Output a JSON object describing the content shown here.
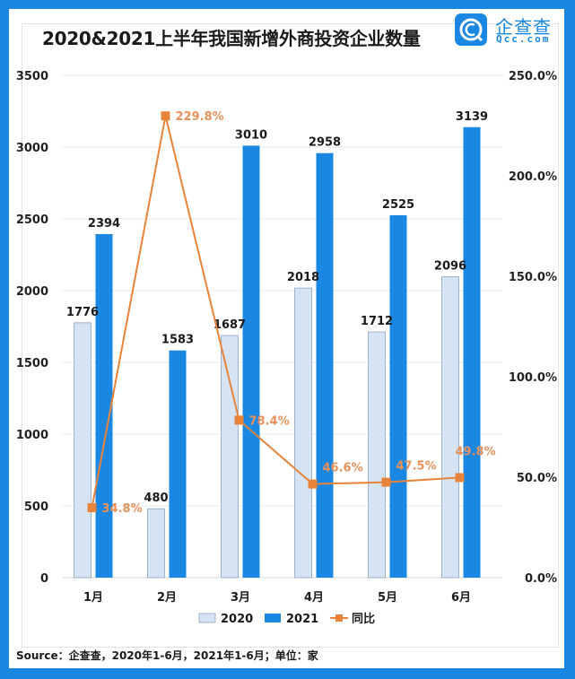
{
  "title": "2020&2021上半年我国新增外商投资企业数量",
  "logo": {
    "icon": "qcc-logo-icon",
    "name_cn": "企查查",
    "name_en": "Qcc.com"
  },
  "source": "Source：企查查，2020年1-6月，2021年1-6月；单位：家",
  "colors": {
    "frame": "#1a87e3",
    "bar2020": "#d6e3f2",
    "bar2020_border": "#8aa6c4",
    "bar2021": "#1a87e3",
    "line": "#e8833a",
    "line_label": "#e8915a"
  },
  "chart_data": {
    "type": "bar",
    "title": "2020&2021上半年我国新增外商投资企业数量",
    "categories": [
      "1月",
      "2月",
      "3月",
      "4月",
      "5月",
      "6月"
    ],
    "series": [
      {
        "name": "2020",
        "type": "bar",
        "axis": "left",
        "values": [
          1776,
          480,
          1687,
          2018,
          1712,
          2096
        ]
      },
      {
        "name": "2021",
        "type": "bar",
        "axis": "left",
        "values": [
          2394,
          1583,
          3010,
          2958,
          2525,
          3139
        ]
      },
      {
        "name": "同比",
        "type": "line",
        "axis": "right",
        "values": [
          34.8,
          229.8,
          78.4,
          46.6,
          47.5,
          49.8
        ],
        "labels": [
          "34.8%",
          "229.8%",
          "78.4%",
          "46.6%",
          "47.5%",
          "49.8%"
        ]
      }
    ],
    "left_axis": {
      "ylim": [
        0,
        3500
      ],
      "ticks": [
        "0",
        "500",
        "1000",
        "1500",
        "2000",
        "2500",
        "3000",
        "3500"
      ]
    },
    "right_axis": {
      "ylim": [
        0,
        250
      ],
      "ticks": [
        "0.0%",
        "50.0%",
        "100.0%",
        "150.0%",
        "200.0%",
        "250.0%"
      ]
    },
    "xlabel": "",
    "ylabel": "",
    "grid": true,
    "legend": {
      "position": "bottom",
      "entries": [
        "2020",
        "2021",
        "同比"
      ]
    },
    "unit": "家"
  }
}
